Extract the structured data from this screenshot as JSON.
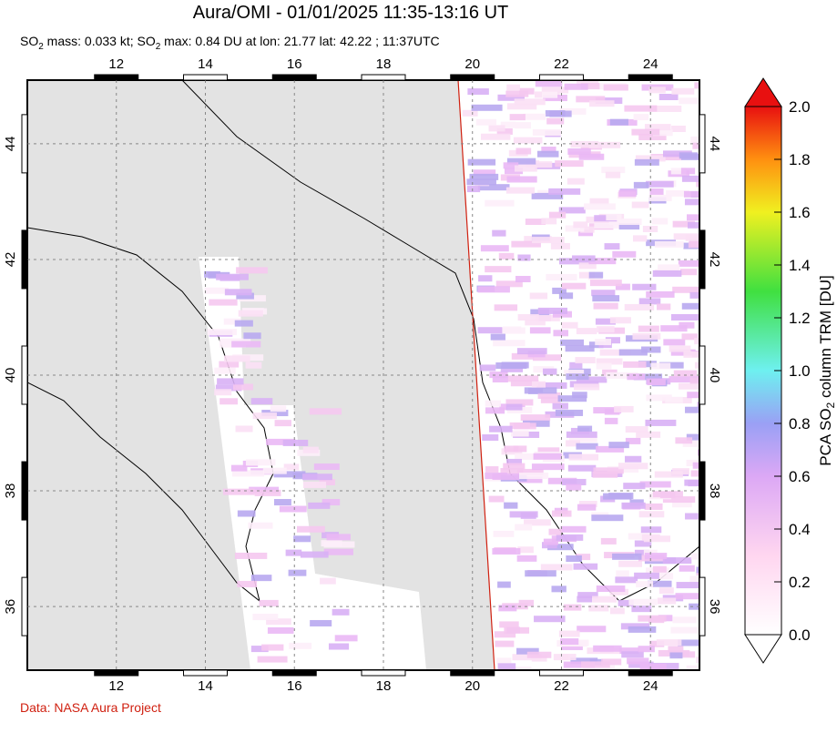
{
  "title": "Aura/OMI - 01/01/2025 11:35-13:16 UT",
  "subtitle": [
    "SO",
    "2",
    " mass: 0.033 kt; SO",
    "2",
    " max: 0.84 DU at lon: 21.77 lat: 42.22 ; 11:37UTC"
  ],
  "map": {
    "xlim": [
      10,
      25.1
    ],
    "ylim": [
      34.9,
      45.1
    ],
    "xticks": [
      12,
      14,
      16,
      18,
      20,
      22,
      24
    ],
    "yticks": [
      36,
      38,
      40,
      42,
      44
    ]
  },
  "colorbar": {
    "label": [
      "PCA SO",
      "2",
      " column TRM [DU]"
    ],
    "lim": [
      0,
      2
    ],
    "ticks": [
      {
        "value": 0,
        "label": "0.0"
      },
      0.2,
      0.4,
      0.6,
      0.8,
      {
        "value": 1,
        "label": "1.0"
      },
      1.2,
      1.4,
      1.6,
      1.8,
      {
        "value": 2,
        "label": "2.0"
      }
    ]
  },
  "credit": "Data: NASA Aura Project"
}
